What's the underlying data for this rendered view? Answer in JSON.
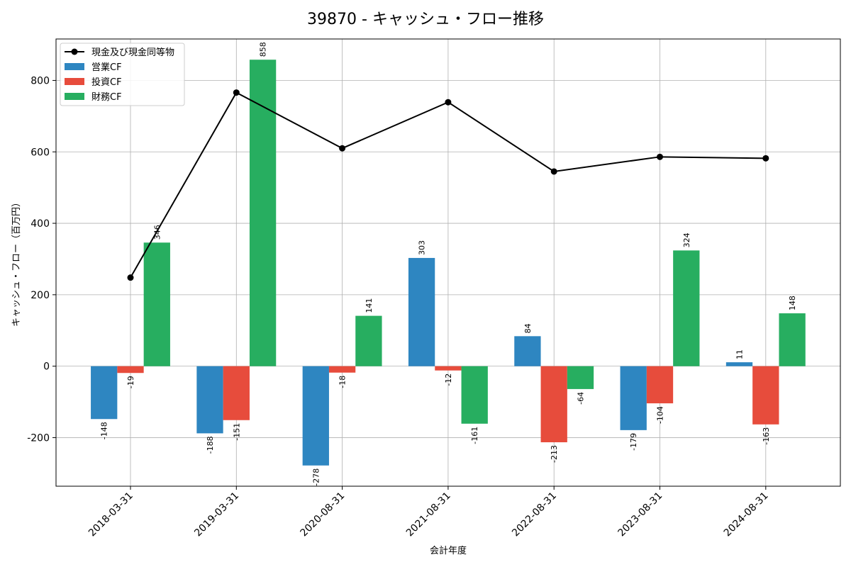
{
  "chart_data": {
    "type": "bar",
    "title": "39870 - キャッシュ・フロー推移",
    "xlabel": "会計年度",
    "ylabel": "キャッシュ・フロー（百万円）",
    "categories": [
      "2018-03-31",
      "2019-03-31",
      "2020-08-31",
      "2021-08-31",
      "2022-08-31",
      "2023-08-31",
      "2024-08-31"
    ],
    "ylim": [
      -336,
      916
    ],
    "yticks": [
      -200,
      0,
      200,
      400,
      600,
      800
    ],
    "grid": true,
    "legend_position": "top-left",
    "series": [
      {
        "name": "営業CF",
        "kind": "bar",
        "color": "#2e86c1",
        "values": [
          -148,
          -188,
          -278,
          303,
          84,
          -179,
          11
        ]
      },
      {
        "name": "投資CF",
        "kind": "bar",
        "color": "#e74c3c",
        "values": [
          -19,
          -151,
          -18,
          -12,
          -213,
          -104,
          -163
        ]
      },
      {
        "name": "財務CF",
        "kind": "bar",
        "color": "#27ae60",
        "values": [
          346,
          858,
          141,
          -161,
          -64,
          324,
          148
        ]
      },
      {
        "name": "現金及び現金同等物",
        "kind": "line",
        "color": "#000000",
        "values": [
          248,
          766,
          610,
          739,
          545,
          586,
          582
        ]
      }
    ]
  }
}
